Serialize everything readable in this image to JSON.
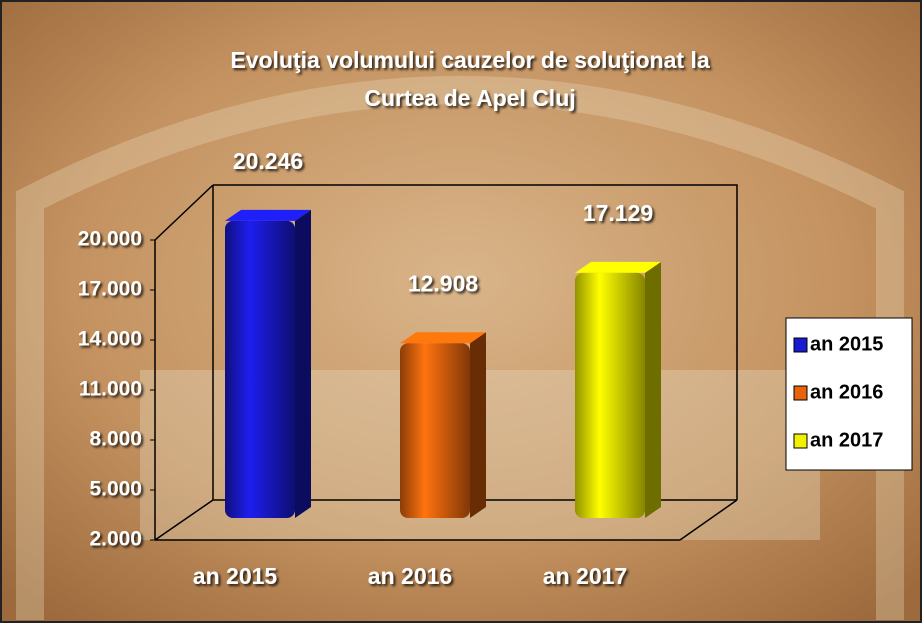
{
  "chart_data": {
    "type": "bar3d",
    "title": [
      "Evoluţia volumului cauzelor de soluţionat la",
      "Curtea de Apel Cluj"
    ],
    "categories": [
      "an 2015",
      "an 2016",
      "an 2017"
    ],
    "values": [
      20246,
      12908,
      17129
    ],
    "value_labels": [
      "20.246",
      "12.908",
      "17.129"
    ],
    "colors": [
      "#1a1ad0",
      "#e8640c",
      "#f2f200"
    ],
    "ylim": [
      2000,
      20000
    ],
    "yticks": [
      {
        "value": 2000,
        "label": "2.000"
      },
      {
        "value": 5000,
        "label": "5.000"
      },
      {
        "value": 8000,
        "label": "8.000"
      },
      {
        "value": 11000,
        "label": "11.000"
      },
      {
        "value": 14000,
        "label": "14.000"
      },
      {
        "value": 17000,
        "label": "17.000"
      },
      {
        "value": 20000,
        "label": "20.000"
      }
    ],
    "legend": "right"
  }
}
